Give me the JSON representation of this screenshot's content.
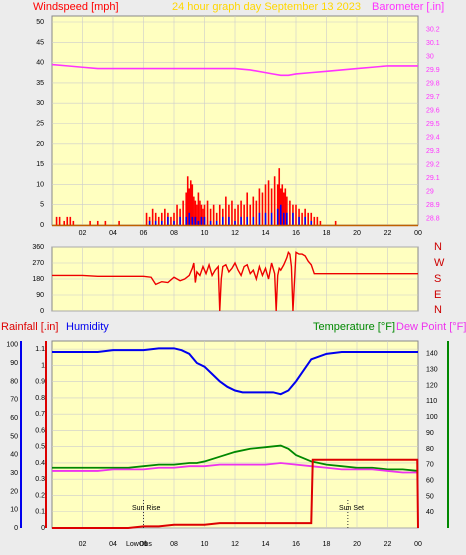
{
  "header": {
    "windspeed_label": "Windspeed [mph]",
    "title": "24 hour graph day   September 13 2023",
    "barometer_label": "Barometer [.in]"
  },
  "bottom_header": {
    "rainfall_label": "Rainfall [.in]",
    "humidity_label": "Humidity",
    "temperature_label": "Temperature [°F]",
    "dewpoint_label": "Dew Point [°F]"
  },
  "direction_labels": [
    "N",
    "W",
    "S",
    "E",
    "N"
  ],
  "annotations": {
    "sun_rise": "Sun Rise",
    "sun_set": "Sun Set",
    "low": "Low",
    "obs": "Obs"
  },
  "colors": {
    "plot_bg": "#ffffc0",
    "windspeed": "#ff0000",
    "gust": "#ff0000",
    "avg_wind": "#0000ff",
    "barometer": "#ff33ff",
    "direction": "#ee0000",
    "rain": "#dd0000",
    "humidity": "#0000ee",
    "temperature": "#008800",
    "dewpoint": "#ee33ee",
    "grid": "#cccccc"
  },
  "chart_data": [
    {
      "type": "bar",
      "title": "24 hour graph day   September 13 2023",
      "xlabel": "",
      "ylabel": "Windspeed [mph]",
      "y2label": "Barometer [.in]",
      "xlim": [
        0,
        24
      ],
      "ylim": [
        0,
        50
      ],
      "y2lim": [
        28.75,
        30.3
      ],
      "x_ticks": [
        "02",
        "04",
        "06",
        "08",
        "10",
        "12",
        "14",
        "16",
        "18",
        "20",
        "22",
        "00"
      ],
      "y_ticks": [
        "0",
        "5",
        "10",
        "15",
        "20",
        "25",
        "30",
        "35",
        "40",
        "45",
        "50"
      ],
      "y2_ticks": [
        "28.8",
        "28.9",
        "29",
        "29.1",
        "29.2",
        "29.3",
        "29.4",
        "29.5",
        "29.6",
        "29.7",
        "29.8",
        "29.9",
        "30",
        "30.1",
        "30.2"
      ],
      "grid": true,
      "series": [
        {
          "name": "Barometer",
          "type": "line",
          "x": [
            0,
            1,
            2,
            3,
            4,
            5,
            6,
            7,
            8,
            9,
            10,
            11,
            12,
            13,
            14,
            14.5,
            15,
            15.5,
            16,
            17,
            18,
            19,
            20,
            21,
            22,
            23,
            24
          ],
          "values": [
            29.94,
            29.93,
            29.92,
            29.91,
            29.91,
            29.91,
            29.91,
            29.91,
            29.91,
            29.91,
            29.91,
            29.91,
            29.91,
            29.9,
            29.88,
            29.87,
            29.86,
            29.86,
            29.87,
            29.88,
            29.89,
            29.9,
            29.91,
            29.92,
            29.93,
            29.93,
            29.93
          ]
        },
        {
          "name": "Gust",
          "type": "bar",
          "x": [
            0.3,
            0.5,
            0.8,
            1.0,
            1.2,
            1.4,
            2.5,
            3.0,
            3.5,
            4.4,
            6.2,
            6.4,
            6.6,
            6.8,
            7.0,
            7.2,
            7.4,
            7.6,
            7.8,
            8.0,
            8.2,
            8.4,
            8.6,
            8.8,
            8.9,
            9.0,
            9.1,
            9.2,
            9.3,
            9.4,
            9.5,
            9.6,
            9.7,
            9.8,
            9.9,
            10.0,
            10.2,
            10.4,
            10.6,
            10.8,
            11.0,
            11.2,
            11.4,
            11.6,
            11.8,
            12.0,
            12.2,
            12.4,
            12.6,
            12.8,
            13.0,
            13.2,
            13.4,
            13.6,
            13.8,
            14.0,
            14.2,
            14.4,
            14.6,
            14.8,
            14.9,
            15.0,
            15.1,
            15.2,
            15.3,
            15.4,
            15.6,
            15.8,
            16.0,
            16.2,
            16.4,
            16.6,
            16.8,
            17.0,
            17.2,
            17.4,
            17.6,
            18.6
          ],
          "values": [
            2,
            2,
            1,
            2,
            2,
            1,
            1,
            1,
            1,
            1,
            3,
            2,
            4,
            3,
            2,
            3,
            4,
            3,
            2,
            3,
            5,
            4,
            6,
            8,
            12,
            9,
            11,
            10,
            7,
            6,
            5,
            8,
            6,
            5,
            4,
            5,
            6,
            4,
            5,
            3,
            5,
            4,
            7,
            5,
            6,
            4,
            5,
            6,
            5,
            8,
            5,
            7,
            6,
            9,
            8,
            10,
            11,
            9,
            12,
            10,
            14,
            9,
            10,
            8,
            9,
            7,
            6,
            5,
            5,
            4,
            3,
            4,
            3,
            3,
            2,
            2,
            1,
            1
          ]
        },
        {
          "name": "Windspeed",
          "type": "bar",
          "x": [
            6.4,
            6.8,
            7.2,
            7.6,
            8.0,
            8.4,
            8.8,
            9.0,
            9.2,
            9.4,
            9.6,
            9.8,
            10.0,
            10.4,
            10.8,
            11.2,
            11.6,
            12.0,
            12.4,
            12.8,
            13.2,
            13.6,
            14.0,
            14.4,
            14.8,
            15.0,
            15.2,
            15.4,
            15.8,
            16.2,
            16.6,
            17.0
          ],
          "values": [
            1,
            1,
            1,
            2,
            1,
            2,
            2,
            3,
            2,
            2,
            1,
            2,
            2,
            1,
            1,
            2,
            2,
            1,
            2,
            2,
            2,
            3,
            3,
            3,
            4,
            5,
            3,
            3,
            3,
            2,
            2,
            1
          ]
        }
      ]
    },
    {
      "type": "line",
      "ylabel": "",
      "xlim": [
        0,
        24
      ],
      "ylim": [
        0,
        360
      ],
      "y_ticks": [
        "0",
        "90",
        "180",
        "270",
        "360"
      ],
      "right_labels": [
        "N",
        "W",
        "S",
        "E",
        "N"
      ],
      "grid": true,
      "series": [
        {
          "name": "Wind direction",
          "x": [
            0,
            1,
            2,
            3,
            4,
            5,
            6,
            6.5,
            6.8,
            7.2,
            7.6,
            8.0,
            8.4,
            8.7,
            9.0,
            9.2,
            9.3,
            9.4,
            9.5,
            9.7,
            9.9,
            10.1,
            10.3,
            10.5,
            10.7,
            10.9,
            11.0,
            11.1,
            11.2,
            11.4,
            11.6,
            11.8,
            12.0,
            12.2,
            12.4,
            12.6,
            12.8,
            13.0,
            13.2,
            13.4,
            13.6,
            13.8,
            14.0,
            14.2,
            14.4,
            14.6,
            14.7,
            14.8,
            14.9,
            15.0,
            15.2,
            15.4,
            15.5,
            15.6,
            15.7,
            15.8,
            16.0,
            16.2,
            16.4,
            16.6,
            16.8,
            17.0,
            17.2,
            17.5,
            18,
            19,
            20,
            21,
            22,
            23,
            24
          ],
          "values": [
            200,
            200,
            200,
            195,
            195,
            195,
            195,
            190,
            150,
            165,
            160,
            190,
            170,
            180,
            200,
            240,
            270,
            160,
            220,
            200,
            250,
            210,
            260,
            200,
            230,
            250,
            0,
            180,
            250,
            260,
            220,
            240,
            270,
            230,
            200,
            250,
            260,
            210,
            230,
            180,
            250,
            200,
            240,
            180,
            270,
            210,
            0,
            200,
            240,
            230,
            260,
            300,
            330,
            320,
            250,
            0,
            330,
            320,
            320,
            310,
            280,
            260,
            210,
            210,
            210,
            210,
            210,
            210,
            210,
            210,
            210
          ]
        }
      ]
    },
    {
      "type": "line",
      "xlim": [
        0,
        24
      ],
      "y_left_rain_ticks": [
        "0",
        "0.1",
        "0.2",
        "0.3",
        "0.4",
        "0.5",
        "0.6",
        "0.7",
        "0.8",
        "0.9",
        "1",
        "1.1"
      ],
      "y_left_hum_ticks": [
        "0",
        "10",
        "20",
        "30",
        "40",
        "50",
        "60",
        "70",
        "80",
        "90",
        "100"
      ],
      "y_right_ticks": [
        "40",
        "50",
        "60",
        "70",
        "80",
        "90",
        "100",
        "110",
        "120",
        "130",
        "140"
      ],
      "ylim_rain": [
        0,
        1.15
      ],
      "ylim_humidity": [
        0,
        102
      ],
      "ylim_temp": [
        30,
        148
      ],
      "grid": true,
      "series": [
        {
          "name": "Humidity",
          "x": [
            0,
            1,
            2,
            3,
            4,
            5,
            6,
            7,
            8,
            8.5,
            9,
            9.5,
            10,
            10.5,
            11,
            11.5,
            12,
            12.5,
            13,
            13.5,
            14,
            14.5,
            15,
            15.5,
            16,
            16.5,
            17,
            18,
            19,
            20,
            21,
            22,
            23,
            24
          ],
          "values": [
            96,
            96,
            96,
            96,
            97,
            97,
            97,
            98,
            98,
            97,
            95,
            90,
            88,
            84,
            80,
            77,
            75,
            74,
            74,
            74,
            74,
            74,
            73,
            75,
            80,
            86,
            92,
            95,
            96,
            96,
            96,
            96,
            96,
            96
          ]
        },
        {
          "name": "Temperature",
          "x": [
            0,
            1,
            2,
            3,
            4,
            5,
            6,
            7,
            8,
            9,
            9.5,
            10,
            11,
            12,
            13,
            14,
            15,
            15.5,
            16,
            17,
            18,
            19,
            20,
            21,
            22,
            23,
            24
          ],
          "values": [
            68,
            68,
            68,
            68,
            68,
            68,
            69,
            70,
            70,
            71,
            71,
            72,
            75,
            78,
            80,
            81,
            82,
            80,
            76,
            72,
            70,
            69,
            68,
            68,
            67,
            67,
            66
          ]
        },
        {
          "name": "Dew Point",
          "x": [
            0,
            1,
            2,
            3,
            4,
            5,
            6,
            7,
            8,
            9,
            10,
            11,
            12,
            13,
            14,
            15,
            16,
            17,
            18,
            19,
            20,
            21,
            22,
            23,
            24
          ],
          "values": [
            66,
            66,
            66,
            66,
            67,
            67,
            67,
            68,
            68,
            69,
            69,
            70,
            70,
            70,
            70,
            71,
            70,
            69,
            68,
            67,
            67,
            67,
            66,
            65,
            65
          ]
        },
        {
          "name": "Rainfall",
          "x": [
            0,
            5,
            6,
            7,
            8,
            9,
            10,
            11,
            12,
            13,
            14,
            15,
            16,
            17,
            17.1,
            18,
            19,
            20,
            21,
            22,
            23,
            23.95,
            24
          ],
          "values": [
            0,
            0,
            0.01,
            0.01,
            0.02,
            0.02,
            0.02,
            0.03,
            0.03,
            0.03,
            0.03,
            0.03,
            0.03,
            0.03,
            0.42,
            0.42,
            0.42,
            0.42,
            0.42,
            0.42,
            0.42,
            0.42,
            0
          ]
        }
      ],
      "annotations": [
        "Sun Rise",
        "Sun Set",
        "Low",
        "Obs"
      ]
    }
  ]
}
